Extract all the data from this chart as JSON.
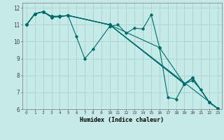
{
  "xlabel": "Humidex (Indice chaleur)",
  "background_color": "#c5eae8",
  "grid_color": "#a0ceca",
  "line_color": "#006b6b",
  "xlim": [
    -0.5,
    23.5
  ],
  "ylim": [
    6,
    12.3
  ],
  "yticks": [
    6,
    7,
    8,
    9,
    10,
    11,
    12
  ],
  "xticks": [
    0,
    1,
    2,
    3,
    4,
    5,
    6,
    7,
    8,
    9,
    10,
    11,
    12,
    13,
    14,
    15,
    16,
    17,
    18,
    19,
    20,
    21,
    22,
    23
  ],
  "series_x": [
    [
      0,
      1,
      2,
      3,
      4,
      5,
      6,
      7,
      8,
      10,
      11,
      12,
      13,
      14,
      15,
      16,
      17,
      18,
      19,
      20,
      21,
      22,
      23
    ],
    [
      0,
      1,
      2,
      3,
      4,
      5,
      10,
      23
    ],
    [
      0,
      1,
      2,
      3,
      4,
      5,
      10,
      19,
      20,
      22,
      23
    ],
    [
      0,
      1,
      2,
      3,
      4,
      5,
      10,
      16,
      19,
      20,
      22,
      23
    ],
    [
      0,
      1,
      2,
      3,
      4,
      5,
      10,
      19,
      20,
      22,
      23
    ]
  ],
  "series_y": [
    [
      11.0,
      11.65,
      11.77,
      11.45,
      11.48,
      11.55,
      10.3,
      9.0,
      9.55,
      10.9,
      11.0,
      10.5,
      10.8,
      10.75,
      11.6,
      9.65,
      6.7,
      6.6,
      7.5,
      7.7,
      7.15,
      6.4,
      6.05
    ],
    [
      11.0,
      11.65,
      11.77,
      11.45,
      11.5,
      11.55,
      11.0,
      6.05
    ],
    [
      11.0,
      11.65,
      11.77,
      11.5,
      11.5,
      11.55,
      11.0,
      7.5,
      7.85,
      6.4,
      6.05
    ],
    [
      11.0,
      11.65,
      11.77,
      11.45,
      11.5,
      11.55,
      11.0,
      9.65,
      7.5,
      7.85,
      6.4,
      6.05
    ],
    [
      11.0,
      11.65,
      11.77,
      11.5,
      11.5,
      11.55,
      11.0,
      7.5,
      7.85,
      6.4,
      6.05
    ]
  ]
}
